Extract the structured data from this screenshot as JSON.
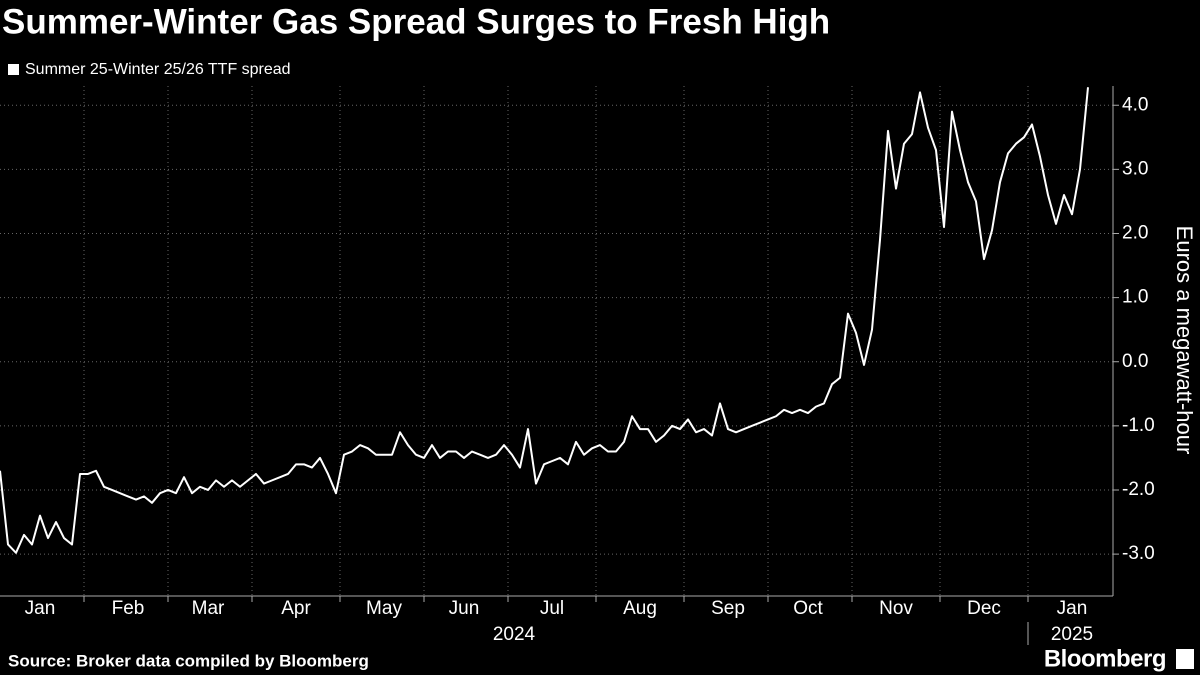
{
  "chart_data": {
    "type": "line",
    "title": "Summer-Winter Gas Spread Surges to Fresh High",
    "y_axis_label": "Euros a megawatt-hour",
    "source": "Source: Broker data compiled by Bloomberg",
    "brand": "Bloomberg",
    "year_labels": [
      "2024",
      "2025"
    ],
    "categories": [
      null,
      null,
      null,
      null,
      null,
      "Jan",
      null,
      null,
      null,
      null,
      null,
      null,
      null,
      null,
      null,
      null,
      "Feb",
      null,
      null,
      null,
      null,
      null,
      null,
      null,
      null,
      null,
      "Mar",
      null,
      null,
      null,
      null,
      null,
      null,
      null,
      null,
      null,
      null,
      "Apr",
      null,
      null,
      null,
      null,
      null,
      null,
      null,
      null,
      null,
      null,
      "May",
      null,
      null,
      null,
      null,
      null,
      null,
      null,
      null,
      null,
      "Jun",
      null,
      null,
      null,
      null,
      null,
      null,
      null,
      null,
      null,
      null,
      "Jul",
      null,
      null,
      null,
      null,
      null,
      null,
      null,
      null,
      null,
      null,
      "Aug",
      null,
      null,
      null,
      null,
      null,
      null,
      null,
      null,
      null,
      null,
      "Sep",
      null,
      null,
      null,
      null,
      null,
      null,
      null,
      null,
      null,
      "Oct",
      null,
      null,
      null,
      null,
      null,
      null,
      null,
      null,
      null,
      null,
      "Nov",
      null,
      null,
      null,
      null,
      null,
      null,
      null,
      null,
      null,
      null,
      "Dec",
      null,
      null,
      null,
      null,
      null,
      null,
      null,
      null,
      null,
      null,
      "Jan",
      null,
      null
    ],
    "series": [
      {
        "name": "Summer 25-Winter 25/26 TTF spread",
        "color": "#ffffff",
        "values": [
          -1.7,
          -2.85,
          -2.98,
          -2.7,
          -2.85,
          -2.4,
          -2.75,
          -2.5,
          -2.75,
          -2.85,
          -1.75,
          -1.75,
          -1.7,
          -1.95,
          -2.0,
          -2.05,
          -2.1,
          -2.15,
          -2.1,
          -2.2,
          -2.05,
          -2.0,
          -2.05,
          -1.8,
          -2.05,
          -1.95,
          -2.0,
          -1.85,
          -1.95,
          -1.85,
          -1.95,
          -1.85,
          -1.75,
          -1.9,
          -1.85,
          -1.8,
          -1.75,
          -1.6,
          -1.6,
          -1.65,
          -1.5,
          -1.75,
          -2.05,
          -1.45,
          -1.4,
          -1.3,
          -1.35,
          -1.45,
          -1.45,
          -1.45,
          -1.1,
          -1.3,
          -1.45,
          -1.5,
          -1.3,
          -1.5,
          -1.4,
          -1.4,
          -1.5,
          -1.4,
          -1.45,
          -1.5,
          -1.45,
          -1.3,
          -1.45,
          -1.65,
          -1.05,
          -1.9,
          -1.6,
          -1.55,
          -1.5,
          -1.6,
          -1.25,
          -1.45,
          -1.35,
          -1.3,
          -1.4,
          -1.4,
          -1.25,
          -0.85,
          -1.05,
          -1.05,
          -1.25,
          -1.15,
          -1.0,
          -1.05,
          -0.9,
          -1.1,
          -1.05,
          -1.15,
          -0.65,
          -1.05,
          -1.1,
          -1.05,
          -1.0,
          -0.95,
          -0.9,
          -0.85,
          -0.75,
          -0.8,
          -0.75,
          -0.8,
          -0.7,
          -0.65,
          -0.35,
          -0.25,
          0.75,
          0.45,
          -0.05,
          0.5,
          1.9,
          3.6,
          2.7,
          3.4,
          3.55,
          4.2,
          3.65,
          3.3,
          2.1,
          3.9,
          3.3,
          2.8,
          2.5,
          1.6,
          2.05,
          2.8,
          3.25,
          3.4,
          3.5,
          3.7,
          3.2,
          2.6,
          2.15,
          2.6,
          2.3,
          3.0,
          4.28
        ]
      }
    ],
    "ylim": [
      -3.7,
      4.3
    ],
    "yticks": [
      {
        "value": -3,
        "label": "-3.0"
      },
      {
        "value": -2,
        "label": "-2.0"
      },
      {
        "value": -1,
        "label": "-1.0"
      },
      {
        "value": 0,
        "label": "0.0"
      },
      {
        "value": 1,
        "label": "1.0"
      },
      {
        "value": 2,
        "label": "2.0"
      },
      {
        "value": 3,
        "label": "3.0"
      },
      {
        "value": 4,
        "label": "4.0"
      }
    ],
    "grid": true
  }
}
